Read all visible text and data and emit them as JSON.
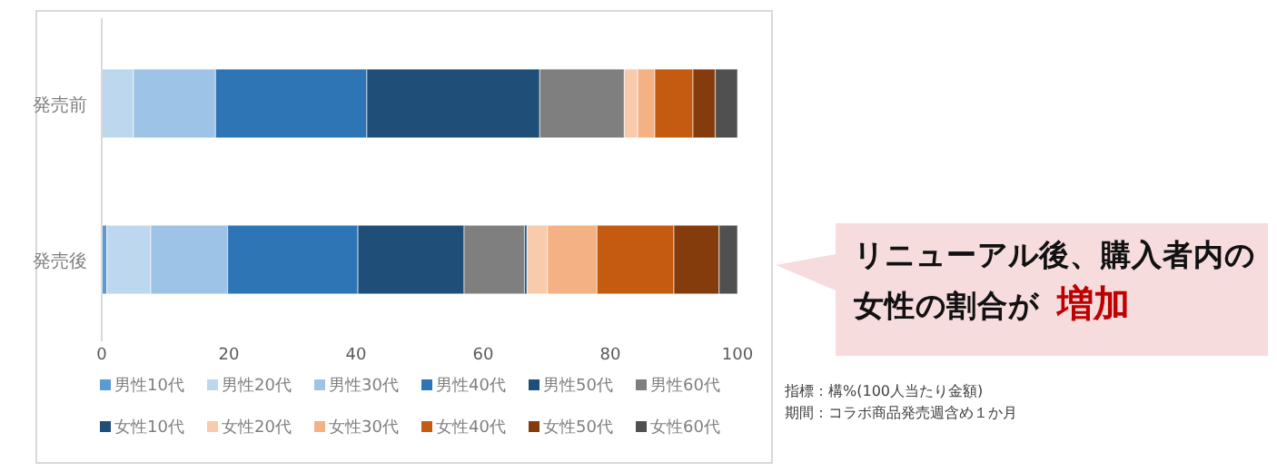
{
  "chart_data": {
    "type": "bar",
    "orientation": "horizontal",
    "stacked": true,
    "categories": [
      "発売前",
      "発売後"
    ],
    "series": [
      {
        "name": "男性10代",
        "color": "#5b9bd5",
        "values": [
          0,
          0.8
        ]
      },
      {
        "name": "男性20代",
        "color": "#bdd7ee",
        "values": [
          5.0,
          6.9
        ]
      },
      {
        "name": "男性30代",
        "color": "#9dc3e6",
        "values": [
          12.9,
          12.1
        ]
      },
      {
        "name": "男性40代",
        "color": "#2e75b6",
        "values": [
          23.8,
          20.5
        ]
      },
      {
        "name": "男性50代",
        "color": "#1f4e79",
        "values": [
          27.2,
          16.7
        ]
      },
      {
        "name": "男性60代",
        "color": "#7f7f7f",
        "values": [
          13.3,
          9.5
        ]
      },
      {
        "name": "女性10代",
        "color": "#1f4e79",
        "values": [
          0,
          0.4
        ]
      },
      {
        "name": "女性20代",
        "color": "#f8cbad",
        "values": [
          2.1,
          3.2
        ]
      },
      {
        "name": "女性30代",
        "color": "#f4b183",
        "values": [
          2.7,
          7.8
        ]
      },
      {
        "name": "女性40代",
        "color": "#c55a11",
        "values": [
          6.0,
          12.1
        ]
      },
      {
        "name": "女性50代",
        "color": "#843c0c",
        "values": [
          3.5,
          7.1
        ]
      },
      {
        "name": "女性60代",
        "color": "#505050",
        "values": [
          3.5,
          2.9
        ]
      }
    ],
    "xlim": [
      0,
      100
    ],
    "xticks": [
      0,
      20,
      40,
      60,
      80,
      100
    ],
    "legend": "bottom",
    "annotations": [
      "リニューアル後、購入者内の女性の割合が",
      "増加",
      "指標：構%(100人当たり金額)",
      "期間：コラボ商品発売週含め１か月"
    ]
  }
}
